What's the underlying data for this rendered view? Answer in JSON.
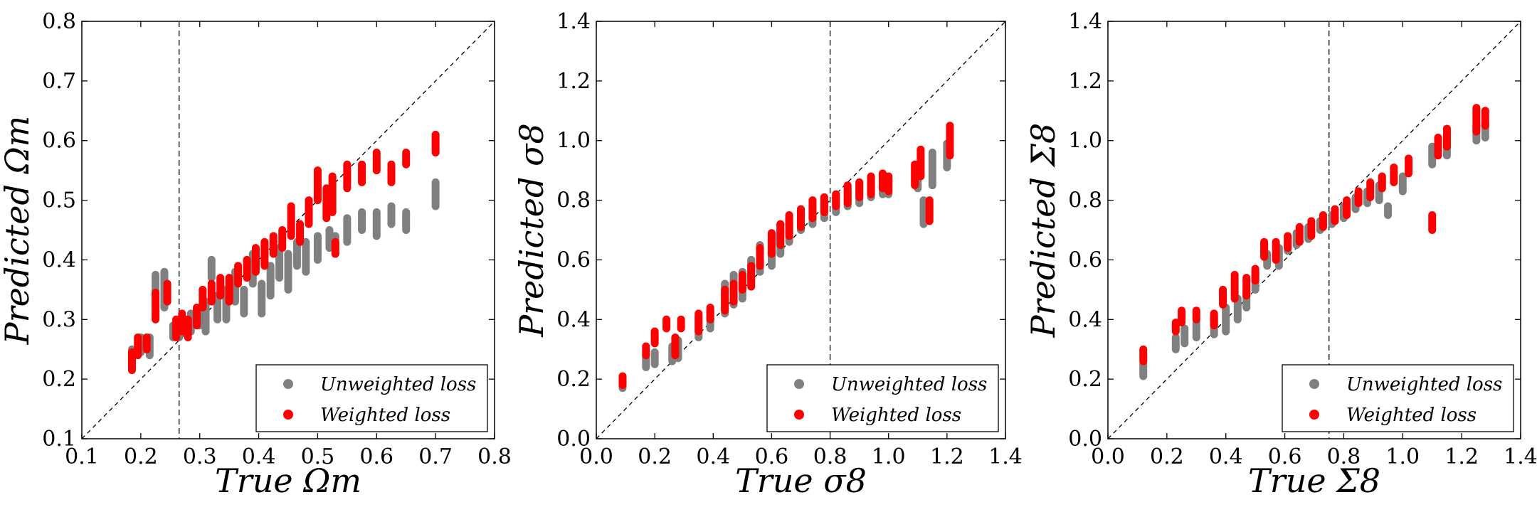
{
  "chart_data": [
    {
      "type": "scatter",
      "xlabel": "True Ωm",
      "ylabel": "Predicted Ωm",
      "xlim": [
        0.1,
        0.8
      ],
      "ylim": [
        0.1,
        0.8
      ],
      "xticks": [
        "0.1",
        "0.2",
        "0.3",
        "0.4",
        "0.5",
        "0.6",
        "0.7",
        "0.8"
      ],
      "yticks": [
        "0.1",
        "0.2",
        "0.3",
        "0.4",
        "0.5",
        "0.6",
        "0.7",
        "0.8"
      ],
      "fiducial_x": 0.265,
      "diagonal": true,
      "legend": "bottom-right",
      "series": [
        {
          "name": "Unweighted loss",
          "color": "#808080",
          "points": [
            [
              0.185,
              0.225,
              0.25
            ],
            [
              0.2,
              0.245,
              0.27
            ],
            [
              0.215,
              0.24,
              0.27
            ],
            [
              0.225,
              0.32,
              0.375
            ],
            [
              0.24,
              0.32,
              0.38
            ],
            [
              0.255,
              0.27,
              0.29
            ],
            [
              0.265,
              0.27,
              0.3
            ],
            [
              0.275,
              0.28,
              0.3
            ],
            [
              0.285,
              0.28,
              0.31
            ],
            [
              0.3,
              0.29,
              0.31
            ],
            [
              0.31,
              0.28,
              0.33
            ],
            [
              0.32,
              0.37,
              0.4
            ],
            [
              0.33,
              0.3,
              0.34
            ],
            [
              0.345,
              0.3,
              0.35
            ],
            [
              0.36,
              0.33,
              0.38
            ],
            [
              0.375,
              0.31,
              0.35
            ],
            [
              0.39,
              0.36,
              0.41
            ],
            [
              0.405,
              0.31,
              0.36
            ],
            [
              0.42,
              0.34,
              0.39
            ],
            [
              0.435,
              0.37,
              0.42
            ],
            [
              0.45,
              0.35,
              0.41
            ],
            [
              0.465,
              0.39,
              0.43
            ],
            [
              0.48,
              0.38,
              0.43
            ],
            [
              0.5,
              0.4,
              0.44
            ],
            [
              0.52,
              0.42,
              0.45
            ],
            [
              0.53,
              0.41,
              0.44
            ],
            [
              0.55,
              0.43,
              0.47
            ],
            [
              0.575,
              0.45,
              0.48
            ],
            [
              0.6,
              0.44,
              0.48
            ],
            [
              0.625,
              0.46,
              0.49
            ],
            [
              0.65,
              0.45,
              0.48
            ],
            [
              0.7,
              0.49,
              0.53
            ]
          ]
        },
        {
          "name": "Weighted loss",
          "color": "#ff0000",
          "points": [
            [
              0.185,
              0.215,
              0.245
            ],
            [
              0.195,
              0.24,
              0.27
            ],
            [
              0.21,
              0.25,
              0.27
            ],
            [
              0.225,
              0.3,
              0.345
            ],
            [
              0.245,
              0.33,
              0.36
            ],
            [
              0.26,
              0.27,
              0.3
            ],
            [
              0.27,
              0.28,
              0.31
            ],
            [
              0.28,
              0.27,
              0.3
            ],
            [
              0.295,
              0.29,
              0.32
            ],
            [
              0.305,
              0.32,
              0.35
            ],
            [
              0.32,
              0.33,
              0.36
            ],
            [
              0.335,
              0.34,
              0.37
            ],
            [
              0.35,
              0.33,
              0.37
            ],
            [
              0.365,
              0.36,
              0.39
            ],
            [
              0.38,
              0.37,
              0.4
            ],
            [
              0.395,
              0.38,
              0.42
            ],
            [
              0.41,
              0.39,
              0.43
            ],
            [
              0.425,
              0.41,
              0.44
            ],
            [
              0.44,
              0.42,
              0.45
            ],
            [
              0.455,
              0.44,
              0.49
            ],
            [
              0.47,
              0.43,
              0.46
            ],
            [
              0.485,
              0.46,
              0.5
            ],
            [
              0.5,
              0.5,
              0.55
            ],
            [
              0.515,
              0.47,
              0.52
            ],
            [
              0.525,
              0.48,
              0.54
            ],
            [
              0.53,
              0.41,
              0.43
            ],
            [
              0.55,
              0.52,
              0.56
            ],
            [
              0.575,
              0.53,
              0.56
            ],
            [
              0.6,
              0.55,
              0.58
            ],
            [
              0.625,
              0.53,
              0.56
            ],
            [
              0.65,
              0.56,
              0.58
            ],
            [
              0.7,
              0.58,
              0.61
            ]
          ]
        }
      ]
    },
    {
      "type": "scatter",
      "xlabel": "True σ8",
      "ylabel": "Predicted σ8",
      "xlim": [
        0.0,
        1.4
      ],
      "ylim": [
        0.0,
        1.4
      ],
      "xticks": [
        "0.0",
        "0.2",
        "0.4",
        "0.6",
        "0.8",
        "1.0",
        "1.2",
        "1.4"
      ],
      "yticks": [
        "0.0",
        "0.2",
        "0.4",
        "0.6",
        "0.8",
        "1.0",
        "1.2",
        "1.4"
      ],
      "fiducial_x": 0.8,
      "diagonal": true,
      "legend": "bottom-right",
      "series": [
        {
          "name": "Unweighted loss",
          "color": "#808080",
          "points": [
            [
              0.09,
              0.17,
              0.2
            ],
            [
              0.17,
              0.24,
              0.28
            ],
            [
              0.2,
              0.25,
              0.29
            ],
            [
              0.26,
              0.26,
              0.31
            ],
            [
              0.28,
              0.27,
              0.33
            ],
            [
              0.35,
              0.34,
              0.41
            ],
            [
              0.39,
              0.37,
              0.43
            ],
            [
              0.44,
              0.42,
              0.52
            ],
            [
              0.47,
              0.45,
              0.55
            ],
            [
              0.5,
              0.47,
              0.56
            ],
            [
              0.53,
              0.53,
              0.6
            ],
            [
              0.56,
              0.56,
              0.65
            ],
            [
              0.6,
              0.58,
              0.68
            ],
            [
              0.63,
              0.62,
              0.72
            ],
            [
              0.66,
              0.66,
              0.74
            ],
            [
              0.7,
              0.7,
              0.77
            ],
            [
              0.74,
              0.72,
              0.78
            ],
            [
              0.78,
              0.74,
              0.8
            ],
            [
              0.82,
              0.76,
              0.82
            ],
            [
              0.86,
              0.78,
              0.84
            ],
            [
              0.9,
              0.79,
              0.86
            ],
            [
              0.94,
              0.81,
              0.87
            ],
            [
              0.98,
              0.82,
              0.88
            ],
            [
              1.0,
              0.82,
              0.88
            ],
            [
              1.1,
              0.84,
              0.92
            ],
            [
              1.12,
              0.72,
              0.8
            ],
            [
              1.15,
              0.85,
              0.96
            ],
            [
              1.2,
              0.91,
              0.99
            ]
          ]
        },
        {
          "name": "Weighted loss",
          "color": "#ff0000",
          "points": [
            [
              0.09,
              0.18,
              0.21
            ],
            [
              0.17,
              0.28,
              0.31
            ],
            [
              0.2,
              0.32,
              0.36
            ],
            [
              0.24,
              0.37,
              0.4
            ],
            [
              0.27,
              0.28,
              0.34
            ],
            [
              0.29,
              0.37,
              0.4
            ],
            [
              0.35,
              0.36,
              0.42
            ],
            [
              0.39,
              0.4,
              0.44
            ],
            [
              0.44,
              0.43,
              0.5
            ],
            [
              0.47,
              0.46,
              0.52
            ],
            [
              0.5,
              0.5,
              0.55
            ],
            [
              0.53,
              0.51,
              0.58
            ],
            [
              0.56,
              0.58,
              0.64
            ],
            [
              0.6,
              0.62,
              0.69
            ],
            [
              0.63,
              0.65,
              0.72
            ],
            [
              0.66,
              0.68,
              0.75
            ],
            [
              0.7,
              0.71,
              0.77
            ],
            [
              0.74,
              0.74,
              0.8
            ],
            [
              0.78,
              0.76,
              0.81
            ],
            [
              0.82,
              0.78,
              0.82
            ],
            [
              0.86,
              0.79,
              0.85
            ],
            [
              0.9,
              0.81,
              0.86
            ],
            [
              0.94,
              0.82,
              0.88
            ],
            [
              0.98,
              0.84,
              0.89
            ],
            [
              1.0,
              0.83,
              0.88
            ],
            [
              1.09,
              0.85,
              0.92
            ],
            [
              1.11,
              0.88,
              0.97
            ],
            [
              1.14,
              0.73,
              0.8
            ],
            [
              1.21,
              0.95,
              1.05
            ]
          ]
        }
      ]
    },
    {
      "type": "scatter",
      "xlabel": "True Σ8",
      "ylabel": "Predicted Σ8",
      "xlim": [
        0.0,
        1.4
      ],
      "ylim": [
        0.0,
        1.4
      ],
      "xticks": [
        "0.0",
        "0.2",
        "0.4",
        "0.6",
        "0.8",
        "1.0",
        "1.2",
        "1.4"
      ],
      "yticks": [
        "0.0",
        "0.2",
        "0.4",
        "0.6",
        "0.8",
        "1.0",
        "1.2",
        "1.4"
      ],
      "fiducial_x": 0.75,
      "diagonal": true,
      "legend": "bottom-right",
      "series": [
        {
          "name": "Unweighted loss",
          "color": "#808080",
          "points": [
            [
              0.12,
              0.21,
              0.25
            ],
            [
              0.23,
              0.3,
              0.34
            ],
            [
              0.26,
              0.32,
              0.37
            ],
            [
              0.3,
              0.34,
              0.39
            ],
            [
              0.36,
              0.35,
              0.41
            ],
            [
              0.4,
              0.36,
              0.44
            ],
            [
              0.44,
              0.4,
              0.47
            ],
            [
              0.47,
              0.44,
              0.5
            ],
            [
              0.5,
              0.5,
              0.56
            ],
            [
              0.54,
              0.58,
              0.62
            ],
            [
              0.58,
              0.58,
              0.64
            ],
            [
              0.61,
              0.63,
              0.67
            ],
            [
              0.64,
              0.65,
              0.69
            ],
            [
              0.68,
              0.67,
              0.71
            ],
            [
              0.72,
              0.7,
              0.73
            ],
            [
              0.76,
              0.72,
              0.75
            ],
            [
              0.8,
              0.74,
              0.78
            ],
            [
              0.84,
              0.77,
              0.81
            ],
            [
              0.88,
              0.79,
              0.83
            ],
            [
              0.92,
              0.8,
              0.85
            ],
            [
              0.95,
              0.75,
              0.78
            ],
            [
              1.0,
              0.83,
              0.88
            ],
            [
              1.1,
              0.92,
              0.98
            ],
            [
              1.15,
              0.95,
              1.0
            ],
            [
              1.25,
              1.0,
              1.05
            ],
            [
              1.28,
              1.01,
              1.06
            ]
          ]
        },
        {
          "name": "Weighted loss",
          "color": "#ff0000",
          "points": [
            [
              0.12,
              0.26,
              0.3
            ],
            [
              0.23,
              0.36,
              0.39
            ],
            [
              0.25,
              0.39,
              0.43
            ],
            [
              0.3,
              0.4,
              0.43
            ],
            [
              0.36,
              0.38,
              0.42
            ],
            [
              0.39,
              0.45,
              0.5
            ],
            [
              0.43,
              0.47,
              0.55
            ],
            [
              0.47,
              0.48,
              0.54
            ],
            [
              0.5,
              0.53,
              0.57
            ],
            [
              0.53,
              0.61,
              0.66
            ],
            [
              0.57,
              0.6,
              0.66
            ],
            [
              0.61,
              0.64,
              0.68
            ],
            [
              0.65,
              0.66,
              0.71
            ],
            [
              0.69,
              0.68,
              0.73
            ],
            [
              0.73,
              0.71,
              0.75
            ],
            [
              0.77,
              0.73,
              0.77
            ],
            [
              0.81,
              0.75,
              0.8
            ],
            [
              0.85,
              0.79,
              0.83
            ],
            [
              0.89,
              0.81,
              0.86
            ],
            [
              0.93,
              0.84,
              0.88
            ],
            [
              0.97,
              0.86,
              0.91
            ],
            [
              1.02,
              0.89,
              0.94
            ],
            [
              1.1,
              0.7,
              0.75
            ],
            [
              1.12,
              0.95,
              1.01
            ],
            [
              1.15,
              0.98,
              1.04
            ],
            [
              1.25,
              1.03,
              1.11
            ],
            [
              1.28,
              1.05,
              1.1
            ]
          ]
        }
      ]
    }
  ]
}
